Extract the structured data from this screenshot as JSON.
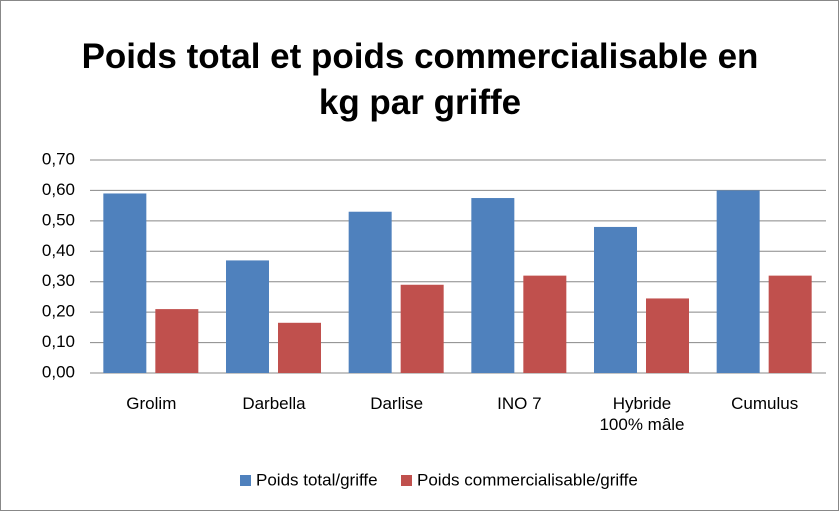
{
  "chart_data": {
    "type": "bar",
    "title": "Poids total et poids commercialisable en kg par griffe",
    "categories": [
      "Grolim",
      "Darbella",
      "Darlise",
      "INO 7",
      "Hybride 100% mâle",
      "Cumulus"
    ],
    "series": [
      {
        "name": "Poids total/griffe",
        "color": "#4f81bd",
        "values": [
          0.59,
          0.37,
          0.53,
          0.575,
          0.48,
          0.6
        ]
      },
      {
        "name": "Poids commercialisable/griffe",
        "color": "#c0504d",
        "values": [
          0.21,
          0.165,
          0.29,
          0.32,
          0.245,
          0.32
        ]
      }
    ],
    "ylim": [
      0,
      0.7
    ],
    "yticks": [
      {
        "value": 0,
        "label": "0,00"
      },
      {
        "value": 0.1,
        "label": "0,10"
      },
      {
        "value": 0.2,
        "label": "0,20"
      },
      {
        "value": 0.3,
        "label": "0,30"
      },
      {
        "value": 0.4,
        "label": "0,40"
      },
      {
        "value": 0.5,
        "label": "0,50"
      },
      {
        "value": 0.6,
        "label": "0,60"
      },
      {
        "value": 0.7,
        "label": "0,70"
      }
    ],
    "grid": true,
    "legend": "bottom"
  }
}
